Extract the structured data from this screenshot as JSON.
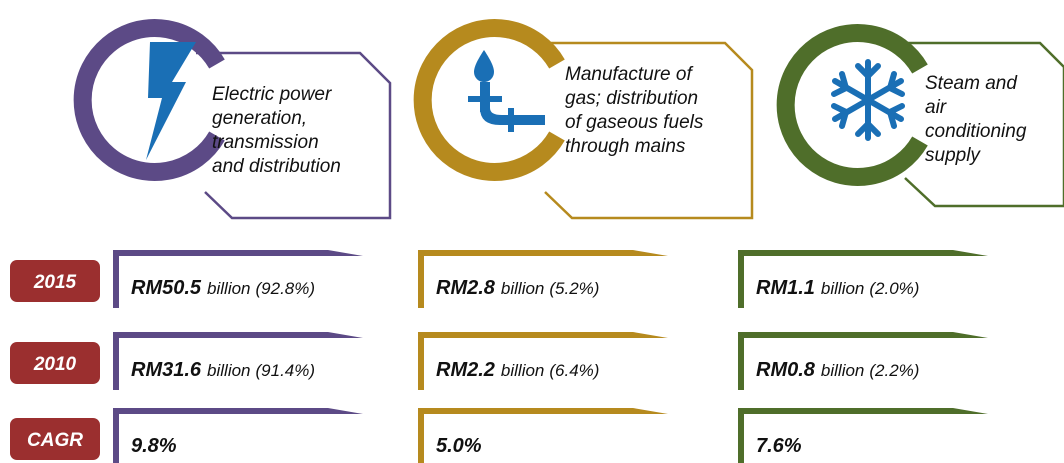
{
  "sectors": [
    {
      "lines": [
        "Electric power",
        "generation,",
        "transmission",
        "and distribution"
      ]
    },
    {
      "lines": [
        "Manufacture of",
        "gas; distribution",
        "of gaseous fuels",
        "through mains"
      ]
    },
    {
      "lines": [
        "Steam and",
        "air",
        "conditioning",
        "supply"
      ]
    }
  ],
  "rows": [
    {
      "label": "2015",
      "cells": [
        {
          "amount": "RM50.5",
          "unit": "billion",
          "share": "(92.8%)"
        },
        {
          "amount": "RM2.8",
          "unit": "billion",
          "share": "(5.2%)"
        },
        {
          "amount": "RM1.1",
          "unit": "billion",
          "share": "(2.0%)"
        }
      ]
    },
    {
      "label": "2010",
      "cells": [
        {
          "amount": "RM31.6",
          "unit": "billion",
          "share": "(91.4%)"
        },
        {
          "amount": "RM2.2",
          "unit": "billion",
          "share": "(6.4%)"
        },
        {
          "amount": "RM0.8",
          "unit": "billion",
          "share": "(2.2%)"
        }
      ]
    },
    {
      "label": "CAGR",
      "cells": [
        {
          "amount": "9.8%"
        },
        {
          "amount": "5.0%"
        },
        {
          "amount": "7.6%"
        }
      ]
    }
  ]
}
